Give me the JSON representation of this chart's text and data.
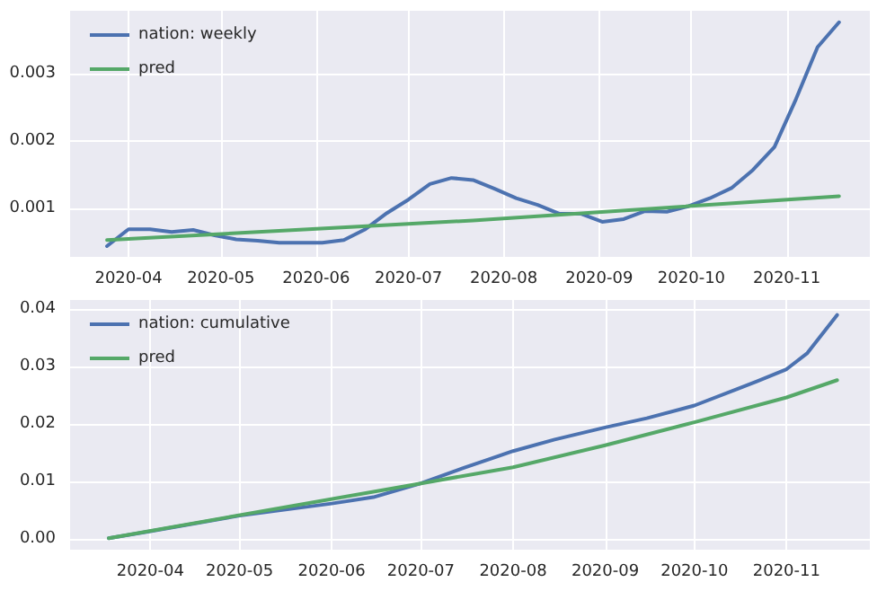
{
  "chart_data": [
    {
      "type": "line",
      "xlim": [
        "2020-03-13",
        "2020-11-28"
      ],
      "ylim": [
        0.00028,
        0.00393
      ],
      "xticks": [
        "2020-04",
        "2020-05",
        "2020-06",
        "2020-07",
        "2020-08",
        "2020-09",
        "2020-10",
        "2020-11"
      ],
      "yticks": [
        0.001,
        0.002,
        0.003
      ],
      "grid": true,
      "legend": "top left",
      "marker": "none",
      "line_style": "solid",
      "series": [
        {
          "name": "nation: weekly",
          "color": "#4c72b0",
          "x": [
            "2020-03-25",
            "2020-04-01",
            "2020-04-08",
            "2020-04-15",
            "2020-04-22",
            "2020-04-29",
            "2020-05-06",
            "2020-05-13",
            "2020-05-20",
            "2020-05-27",
            "2020-06-03",
            "2020-06-10",
            "2020-06-17",
            "2020-06-24",
            "2020-07-01",
            "2020-07-08",
            "2020-07-15",
            "2020-07-22",
            "2020-07-29",
            "2020-08-05",
            "2020-08-12",
            "2020-08-19",
            "2020-08-26",
            "2020-09-02",
            "2020-09-09",
            "2020-09-16",
            "2020-09-23",
            "2020-09-30",
            "2020-10-07",
            "2020-10-14",
            "2020-10-21",
            "2020-10-28",
            "2020-11-04",
            "2020-11-11",
            "2020-11-18"
          ],
          "values": [
            0.00044,
            0.00069,
            0.00069,
            0.00065,
            0.00068,
            0.0006,
            0.00054,
            0.00052,
            0.00049,
            0.00049,
            0.00049,
            0.00053,
            0.00069,
            0.00093,
            0.00113,
            0.00136,
            0.00145,
            0.00142,
            0.00129,
            0.00115,
            0.00105,
            0.00092,
            0.00092,
            0.0008,
            0.00084,
            0.00096,
            0.00095,
            0.00103,
            0.00115,
            0.0013,
            0.00157,
            0.00191,
            0.00262,
            0.00339,
            0.00376
          ]
        },
        {
          "name": "pred",
          "color": "#55a868",
          "x": [
            "2020-03-25",
            "2020-07-22",
            "2020-11-18"
          ],
          "values": [
            0.00053,
            0.00082,
            0.00118
          ]
        }
      ]
    },
    {
      "type": "line",
      "xlim": [
        "2020-03-05",
        "2020-11-29"
      ],
      "ylim": [
        -0.0018,
        0.0415
      ],
      "xticks": [
        "2020-04",
        "2020-05",
        "2020-06",
        "2020-07",
        "2020-08",
        "2020-09",
        "2020-10",
        "2020-11"
      ],
      "yticks": [
        {
          "value": 0,
          "label": "0.00"
        },
        {
          "value": 0.01,
          "label": "0.01"
        },
        {
          "value": 0.02,
          "label": "0.02"
        },
        {
          "value": 0.03,
          "label": "0.03"
        },
        {
          "value": 0.04,
          "label": "0.04"
        }
      ],
      "grid": true,
      "legend": "top left",
      "marker": "none",
      "line_style": "solid",
      "series": [
        {
          "name": "nation: cumulative",
          "color": "#4c72b0",
          "x": [
            "2020-03-18",
            "2020-04-01",
            "2020-05-01",
            "2020-06-01",
            "2020-06-15",
            "2020-07-01",
            "2020-07-15",
            "2020-08-01",
            "2020-08-15",
            "2020-09-01",
            "2020-09-15",
            "2020-10-01",
            "2020-10-15",
            "2020-10-22",
            "2020-11-01",
            "2020-11-08",
            "2020-11-18"
          ],
          "values": [
            0.0002,
            0.0014,
            0.0041,
            0.0062,
            0.0073,
            0.0097,
            0.0123,
            0.0153,
            0.0173,
            0.0194,
            0.021,
            0.0232,
            0.026,
            0.0274,
            0.0295,
            0.0323,
            0.0389
          ]
        },
        {
          "name": "pred",
          "color": "#55a868",
          "x": [
            "2020-03-18",
            "2020-07-01",
            "2020-08-01",
            "2020-09-01",
            "2020-10-01",
            "2020-11-01",
            "2020-11-18"
          ],
          "values": [
            0.0002,
            0.0097,
            0.0125,
            0.0163,
            0.0203,
            0.0246,
            0.0276
          ]
        }
      ]
    }
  ]
}
